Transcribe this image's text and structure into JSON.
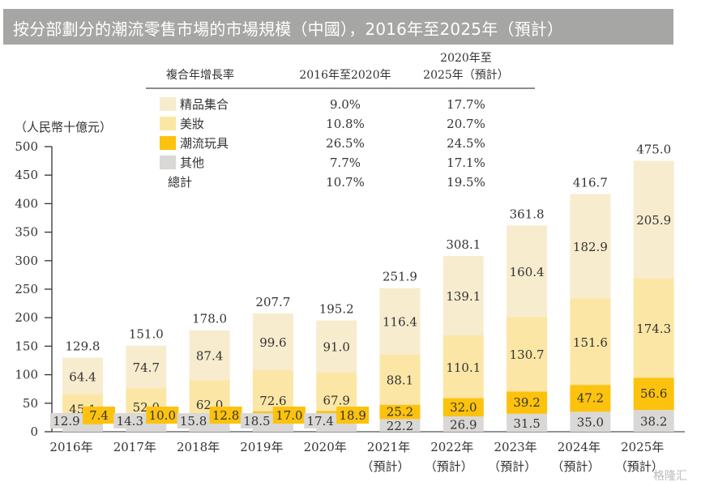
{
  "title": "按分部劃分的潮流零售市場的市場規模（中國），2016年至2025年（預計）",
  "watermark": "格隆汇",
  "cagr_table": {
    "header": {
      "label": "複合年增長率",
      "col1": "2016年至2020年",
      "col2_line1": "2020年至",
      "col2_line2": "2025年（預計）"
    },
    "rows": [
      {
        "name": "精品集合",
        "color": "#f7ecce",
        "cagr_2016_2020": "9.0%",
        "cagr_2020_2025": "17.7%"
      },
      {
        "name": "美妝",
        "color": "#fbe6a5",
        "cagr_2016_2020": "10.8%",
        "cagr_2020_2025": "20.7%"
      },
      {
        "name": "潮流玩具",
        "color": "#fcc20d",
        "cagr_2016_2020": "26.5%",
        "cagr_2020_2025": "24.5%"
      },
      {
        "name": "其他",
        "color": "#d9d8d7",
        "cagr_2016_2020": "7.7%",
        "cagr_2020_2025": "17.1%"
      },
      {
        "name": "總計",
        "color": null,
        "cagr_2016_2020": "10.7%",
        "cagr_2020_2025": "19.5%"
      }
    ]
  },
  "chart_data": {
    "type": "bar",
    "stacked": true,
    "title": "按分部劃分的潮流零售市場的市場規模（中國），2016年至2025年（預計）",
    "ylabel": "（人民幣十億元）",
    "xlabel": "",
    "ylim": [
      0,
      500
    ],
    "yticks": [
      0,
      50,
      100,
      150,
      200,
      250,
      300,
      350,
      400,
      450,
      500
    ],
    "grid": false,
    "categories": [
      {
        "year": "2016年",
        "note": ""
      },
      {
        "year": "2017年",
        "note": ""
      },
      {
        "year": "2018年",
        "note": ""
      },
      {
        "year": "2019年",
        "note": ""
      },
      {
        "year": "2020年",
        "note": ""
      },
      {
        "year": "2021年",
        "note": "（預計）"
      },
      {
        "year": "2022年",
        "note": "（預計）"
      },
      {
        "year": "2023年",
        "note": "（預計）"
      },
      {
        "year": "2024年",
        "note": "（預計）"
      },
      {
        "year": "2025年",
        "note": "（預計）"
      }
    ],
    "series": [
      {
        "name": "其他",
        "color": "#d9d8d7",
        "values": [
          12.9,
          14.3,
          15.8,
          18.5,
          17.4,
          22.2,
          26.9,
          31.5,
          35.0,
          38.2
        ]
      },
      {
        "name": "潮流玩具",
        "color": "#fcc20d",
        "values": [
          7.4,
          10.0,
          12.8,
          17.0,
          18.9,
          25.2,
          32.0,
          39.2,
          47.2,
          56.6
        ]
      },
      {
        "name": "美妝",
        "color": "#fbe6a5",
        "values": [
          45.1,
          52.0,
          62.0,
          72.6,
          67.9,
          88.1,
          110.1,
          130.7,
          151.6,
          174.3
        ]
      },
      {
        "name": "精品集合",
        "color": "#f7ecce",
        "values": [
          64.4,
          74.7,
          87.4,
          99.6,
          91.0,
          116.4,
          139.1,
          160.4,
          182.9,
          205.9
        ]
      }
    ],
    "totals": [
      "129.8",
      "151.0",
      "178.0",
      "207.7",
      "195.2",
      "251.9",
      "308.1",
      "361.8",
      "416.7",
      "475.0"
    ],
    "value_labels": {
      "其他": [
        "12.9",
        "14.3",
        "15.8",
        "18.5",
        "17.4",
        "22.2",
        "26.9",
        "31.5",
        "35.0",
        "38.2"
      ],
      "潮流玩具": [
        "7.4",
        "10.0",
        "12.8",
        "17.0",
        "18.9",
        "25.2",
        "32.0",
        "39.2",
        "47.2",
        "56.6"
      ],
      "美妝": [
        "45.1",
        "52.0",
        "62.0",
        "72.6",
        "67.9",
        "88.1",
        "110.1",
        "130.7",
        "151.6",
        "174.3"
      ],
      "精品集合": [
        "64.4",
        "74.7",
        "87.4",
        "99.6",
        "91.0",
        "116.4",
        "139.1",
        "160.4",
        "182.9",
        "205.9"
      ]
    }
  }
}
